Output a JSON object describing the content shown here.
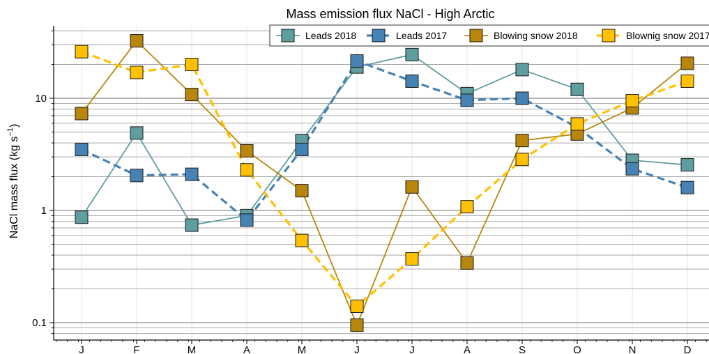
{
  "chart_data": {
    "type": "line",
    "title": "Mass emission flux NaCl - High Arctic",
    "ylabel": "NaCl mass flux (kg s",
    "ylabel_sup": "−1",
    "ylabel_close": ")",
    "xlabel": "",
    "yscale": "log",
    "ylim": [
      0.08,
      45
    ],
    "categories": [
      "J",
      "F",
      "M",
      "A",
      "M",
      "J",
      "J",
      "A",
      "S",
      "O",
      "N",
      "D"
    ],
    "y_ticks": [
      {
        "value": 0.1,
        "label": "0.1"
      },
      {
        "value": 1,
        "label": "1"
      },
      {
        "value": 10,
        "label": "10"
      }
    ],
    "grid": true,
    "legend_position": "top-right",
    "series": [
      {
        "name": "Leads 2018",
        "color": "#5f9ea0",
        "dashed": false,
        "values": [
          0.87,
          4.9,
          0.74,
          0.9,
          4.2,
          19,
          24.5,
          11,
          18,
          12,
          2.8,
          2.55
        ]
      },
      {
        "name": "Leads 2017",
        "color": "#4682b4",
        "dashed": true,
        "values": [
          3.5,
          2.05,
          2.1,
          0.82,
          3.5,
          21.5,
          14.2,
          9.6,
          10,
          5.5,
          2.35,
          1.6
        ]
      },
      {
        "name": "Blowing snow 2018",
        "color": "#b8860b",
        "dashed": false,
        "values": [
          7.3,
          32.5,
          10.8,
          3.4,
          1.5,
          0.095,
          1.62,
          0.34,
          4.2,
          4.8,
          8.2,
          20.5
        ]
      },
      {
        "name": "Blownig snow 2017",
        "color": "#ffc000",
        "dashed": true,
        "values": [
          26,
          17,
          20,
          2.3,
          0.54,
          0.14,
          0.37,
          1.08,
          2.85,
          5.9,
          9.5,
          14.2
        ]
      }
    ]
  }
}
